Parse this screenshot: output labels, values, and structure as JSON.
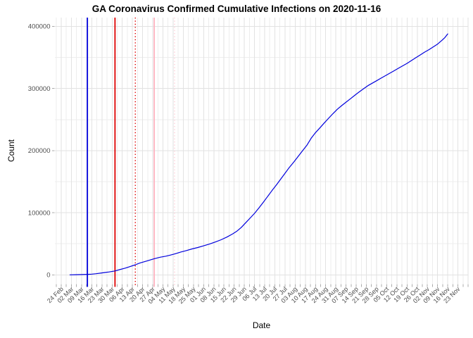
{
  "title": "GA Coronavirus Confirmed Cumulative Infections on 2020-11-16",
  "x_axis": {
    "label": "Date",
    "tick_labels": [
      "24 Feb",
      "02 Mar",
      "09 Mar",
      "16 Mar",
      "23 Mar",
      "30 Mar",
      "06 Apr",
      "13 Apr",
      "20 Apr",
      "27 Apr",
      "04 May",
      "11 May",
      "18 May",
      "25 May",
      "01 Jun",
      "08 Jun",
      "15 Jun",
      "22 Jun",
      "29 Jun",
      "06 Jul",
      "13 Jul",
      "20 Jul",
      "27 Jul",
      "03 Aug",
      "10 Aug",
      "17 Aug",
      "24 Aug",
      "31 Aug",
      "07 Sep",
      "14 Sep",
      "21 Sep",
      "28 Sep",
      "05 Oct",
      "12 Oct",
      "19 Oct",
      "26 Oct",
      "02 Nov",
      "09 Nov",
      "16 Nov",
      "23 Nov"
    ]
  },
  "y_axis": {
    "label": "Count",
    "tick_labels": [
      "0",
      "100000",
      "200000",
      "300000",
      "400000"
    ]
  },
  "colors": {
    "series_line": "#0000DD",
    "vline_blue": "#0000DD",
    "vline_red": "#DD0000",
    "vline_pink": "#FFB3C1",
    "vline_pink_light": "#FFD0D8",
    "grid_major": "#E2E2E2",
    "grid_minor": "#EDEDED",
    "tick_mark": "#ABABAB",
    "tick_label": "#4D4D4D"
  },
  "chart_data": {
    "type": "line",
    "title": "GA Coronavirus Confirmed Cumulative Infections on 2020-11-16",
    "xlabel": "Date",
    "ylabel": "Count",
    "ylim": [
      0,
      400000
    ],
    "y_major_step": 100000,
    "y_minor_step": 50000,
    "x_range": [
      "2020-02-24",
      "2020-11-23"
    ],
    "x_tick_interval_days": 7,
    "grid": "on",
    "legend": "none",
    "series": [
      {
        "name": "cumulative-confirmed-infections",
        "color": "#0000DD",
        "points": [
          [
            "2020-03-01",
            0
          ],
          [
            "2020-03-05",
            200
          ],
          [
            "2020-03-09",
            450
          ],
          [
            "2020-03-13",
            800
          ],
          [
            "2020-03-16",
            1100
          ],
          [
            "2020-03-19",
            1800
          ],
          [
            "2020-03-22",
            2700
          ],
          [
            "2020-03-25",
            3700
          ],
          [
            "2020-03-28",
            4700
          ],
          [
            "2020-04-01",
            6200
          ],
          [
            "2020-04-04",
            8300
          ],
          [
            "2020-04-08",
            10800
          ],
          [
            "2020-04-11",
            13000
          ],
          [
            "2020-04-15",
            16200
          ],
          [
            "2020-04-18",
            18900
          ],
          [
            "2020-04-22",
            21700
          ],
          [
            "2020-04-25",
            23800
          ],
          [
            "2020-04-28",
            26000
          ],
          [
            "2020-05-02",
            28300
          ],
          [
            "2020-05-06",
            30100
          ],
          [
            "2020-05-09",
            31800
          ],
          [
            "2020-05-12",
            33600
          ],
          [
            "2020-05-16",
            36500
          ],
          [
            "2020-05-20",
            39000
          ],
          [
            "2020-05-24",
            41700
          ],
          [
            "2020-05-28",
            44000
          ],
          [
            "2020-06-01",
            46700
          ],
          [
            "2020-06-05",
            49600
          ],
          [
            "2020-06-09",
            52800
          ],
          [
            "2020-06-13",
            56500
          ],
          [
            "2020-06-17",
            60800
          ],
          [
            "2020-06-21",
            66000
          ],
          [
            "2020-06-24",
            70500
          ],
          [
            "2020-06-27",
            76500
          ],
          [
            "2020-06-30",
            84000
          ],
          [
            "2020-07-03",
            91500
          ],
          [
            "2020-07-06",
            99000
          ],
          [
            "2020-07-09",
            107500
          ],
          [
            "2020-07-12",
            116500
          ],
          [
            "2020-07-15",
            126000
          ],
          [
            "2020-07-18",
            135500
          ],
          [
            "2020-07-21",
            144500
          ],
          [
            "2020-07-24",
            154000
          ],
          [
            "2020-07-27",
            163500
          ],
          [
            "2020-07-30",
            173000
          ],
          [
            "2020-08-02",
            181500
          ],
          [
            "2020-08-05",
            190500
          ],
          [
            "2020-08-08",
            199500
          ],
          [
            "2020-08-11",
            208500
          ],
          [
            "2020-08-14",
            220000
          ],
          [
            "2020-08-17",
            229000
          ],
          [
            "2020-08-20",
            236500
          ],
          [
            "2020-08-23",
            244500
          ],
          [
            "2020-08-26",
            252000
          ],
          [
            "2020-08-29",
            259500
          ],
          [
            "2020-09-01",
            266500
          ],
          [
            "2020-09-04",
            272500
          ],
          [
            "2020-09-07",
            278000
          ],
          [
            "2020-09-10",
            283500
          ],
          [
            "2020-09-13",
            289000
          ],
          [
            "2020-09-16",
            294500
          ],
          [
            "2020-09-19",
            299500
          ],
          [
            "2020-09-22",
            304500
          ],
          [
            "2020-09-25",
            308500
          ],
          [
            "2020-09-28",
            312500
          ],
          [
            "2020-10-01",
            316500
          ],
          [
            "2020-10-04",
            320500
          ],
          [
            "2020-10-07",
            324500
          ],
          [
            "2020-10-10",
            328500
          ],
          [
            "2020-10-13",
            332500
          ],
          [
            "2020-10-16",
            336500
          ],
          [
            "2020-10-19",
            340500
          ],
          [
            "2020-10-22",
            345000
          ],
          [
            "2020-10-25",
            349500
          ],
          [
            "2020-10-28",
            354000
          ],
          [
            "2020-10-31",
            358500
          ],
          [
            "2020-11-03",
            362500
          ],
          [
            "2020-11-06",
            367000
          ],
          [
            "2020-11-09",
            371500
          ],
          [
            "2020-11-12",
            377500
          ],
          [
            "2020-11-14",
            382000
          ],
          [
            "2020-11-16",
            388000
          ]
        ]
      }
    ],
    "vlines": [
      {
        "name": "vline-blue-solid",
        "date": "2020-03-13",
        "color": "#0000DD",
        "style": "solid"
      },
      {
        "name": "vline-red-solid",
        "date": "2020-04-01",
        "color": "#DD0000",
        "style": "solid"
      },
      {
        "name": "vline-red-dotted",
        "date": "2020-04-15",
        "color": "#DD0000",
        "style": "dotted"
      },
      {
        "name": "vline-pink-solid",
        "date": "2020-04-28",
        "color": "#FFB3C1",
        "style": "solid"
      },
      {
        "name": "vline-pink-dotted",
        "date": "2020-05-12",
        "color": "#FFD0D8",
        "style": "dotted"
      }
    ]
  }
}
